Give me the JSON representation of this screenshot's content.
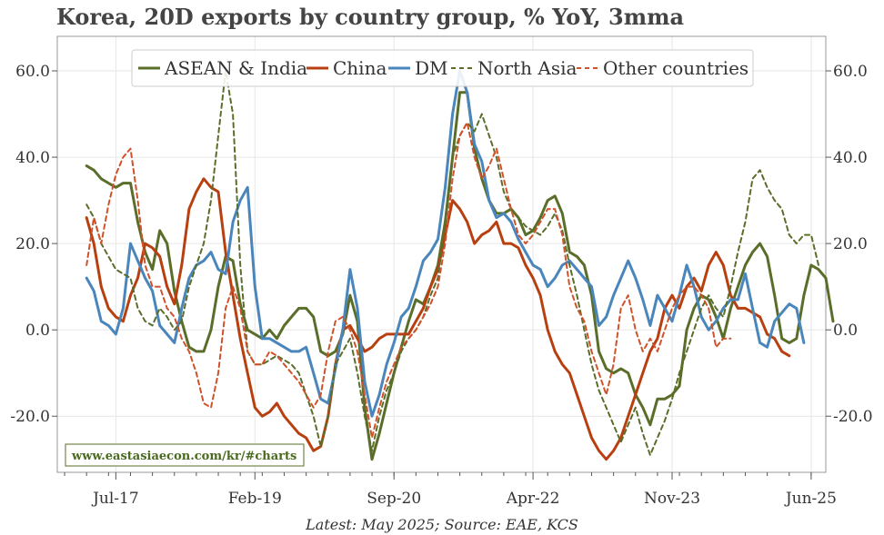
{
  "title": "Korea, 20D exports by country group, % YoY, 3mma",
  "source": "Latest: May 2025; Source: EAE, KCS",
  "watermark": "www.eastasiaecon.com/kr/#charts",
  "chart_data": {
    "type": "line",
    "title": "Korea, 20D exports by country group, % YoY, 3mma",
    "ylim": [
      -33,
      68
    ],
    "y_ticks": [
      60,
      40,
      20,
      0,
      -20
    ],
    "y_tick_labels": [
      "60.0",
      "40.0",
      "20.0",
      "0.0",
      "-20.0"
    ],
    "x_ticks": [
      "Jul-17",
      "Feb-19",
      "Sep-20",
      "Apr-22",
      "Nov-23",
      "Jun-25"
    ],
    "x_range": [
      "2016-11",
      "2025-08"
    ],
    "grid": true,
    "legend_position": "top",
    "start_month": "2017-03",
    "series": [
      {
        "name": "ASEAN & India",
        "color": "#5a6e2a",
        "dash": "solid",
        "values": [
          38,
          37,
          35,
          34,
          33,
          34,
          34,
          25,
          18,
          14,
          23,
          20,
          9,
          2,
          -4,
          -5,
          -5,
          0,
          10,
          17,
          16,
          6,
          0,
          -1,
          -2,
          0,
          -2,
          1,
          3,
          5,
          5,
          3,
          -5,
          -6,
          -5,
          -1,
          8,
          2,
          -18,
          -30,
          -24,
          -17,
          -10,
          -4,
          2,
          7,
          6,
          10,
          15,
          25,
          40,
          55,
          55,
          42,
          35,
          30,
          27,
          27,
          28,
          26,
          22,
          23,
          26,
          30,
          31,
          27,
          18,
          17,
          15,
          8,
          -5,
          -9,
          -10,
          -9,
          -10,
          -15,
          -18,
          -22,
          -16,
          -16,
          -15,
          -13,
          0,
          5,
          8,
          7,
          3,
          -2,
          5,
          10,
          15,
          18,
          20,
          17,
          8,
          -2,
          -3,
          -2,
          8,
          15,
          14,
          12,
          2
        ]
      },
      {
        "name": "China",
        "color": "#b84010",
        "dash": "solid",
        "values": [
          26,
          20,
          10,
          5,
          3,
          2,
          8,
          12,
          20,
          19,
          17,
          10,
          6,
          15,
          28,
          32,
          35,
          33,
          32,
          18,
          8,
          -2,
          -10,
          -18,
          -20,
          -19,
          -17,
          -20,
          -22,
          -24,
          -25,
          -28,
          -27,
          -20,
          -8,
          0,
          1,
          -2,
          -5,
          -4,
          -2,
          -1,
          -1,
          -1,
          -1,
          2,
          5,
          10,
          14,
          22,
          30,
          28,
          25,
          20,
          22,
          23,
          25,
          20,
          20,
          19,
          15,
          12,
          8,
          0,
          -5,
          -8,
          -10,
          -15,
          -20,
          -25,
          -28,
          -30,
          -28,
          -25,
          -20,
          -15,
          -10,
          -5,
          -2,
          5,
          8,
          5,
          10,
          12,
          9,
          15,
          18,
          15,
          8,
          5,
          5,
          4,
          3,
          -1,
          -2,
          -5,
          -6
        ]
      },
      {
        "name": "DM",
        "color": "#4a86bb",
        "dash": "solid",
        "values": [
          12,
          9,
          2,
          1,
          -1,
          5,
          20,
          16,
          12,
          9,
          1,
          -1,
          -3,
          5,
          12,
          15,
          16,
          18,
          14,
          13,
          25,
          30,
          33,
          10,
          -2,
          -2,
          -3,
          -4,
          -5,
          -5,
          -4,
          -10,
          -16,
          -17,
          -9,
          0,
          14,
          5,
          -12,
          -20,
          -15,
          -8,
          -3,
          3,
          5,
          10,
          16,
          18,
          21,
          33,
          50,
          60,
          55,
          43,
          39,
          30,
          26,
          27,
          25,
          21,
          18,
          15,
          14,
          10,
          12,
          15,
          16,
          14,
          12,
          10,
          1,
          3,
          8,
          12,
          16,
          12,
          7,
          1,
          8,
          5,
          2,
          8,
          15,
          10,
          3,
          0,
          2,
          5,
          7,
          7,
          13,
          5,
          -3,
          -4,
          2,
          4,
          6,
          5,
          -3
        ]
      },
      {
        "name": "North Asia",
        "color": "#5a6e2a",
        "dash": "dashed",
        "values": [
          29,
          26,
          20,
          17,
          14,
          13,
          12,
          5,
          2,
          1,
          5,
          3,
          0,
          2,
          10,
          15,
          20,
          30,
          45,
          60,
          50,
          15,
          -5,
          -8,
          -8,
          -7,
          -6,
          -7,
          -8,
          -10,
          -15,
          -20,
          -27,
          -20,
          -8,
          -5,
          -2,
          -10,
          -20,
          -28,
          -20,
          -14,
          -10,
          -5,
          -2,
          0,
          3,
          8,
          12,
          25,
          40,
          45,
          48,
          46,
          50,
          45,
          40,
          32,
          28,
          26,
          24,
          23,
          22,
          24,
          27,
          23,
          15,
          8,
          0,
          -8,
          -14,
          -18,
          -22,
          -26,
          -22,
          -18,
          -24,
          -29,
          -25,
          -21,
          -16,
          -10,
          -5,
          0,
          5,
          8,
          5,
          3,
          10,
          18,
          25,
          35,
          37,
          33,
          30,
          28,
          22,
          20,
          22,
          22,
          15
        ]
      },
      {
        "name": "Other countries",
        "color": "#d0522a",
        "dash": "dashed",
        "values": [
          15,
          26,
          20,
          29,
          36,
          40,
          42,
          30,
          15,
          10,
          10,
          5,
          3,
          -2,
          -5,
          -10,
          -17,
          -18,
          -10,
          5,
          10,
          5,
          -5,
          -8,
          -8,
          -5,
          -6,
          -8,
          -10,
          -12,
          -15,
          -18,
          -15,
          -5,
          2,
          3,
          0,
          -5,
          -15,
          -25,
          -18,
          -12,
          -8,
          -4,
          -2,
          0,
          3,
          6,
          10,
          20,
          35,
          45,
          48,
          40,
          35,
          38,
          42,
          35,
          28,
          22,
          20,
          22,
          25,
          28,
          28,
          22,
          10,
          5,
          2,
          -5,
          -10,
          -15,
          -8,
          5,
          8,
          0,
          -5,
          -2,
          -5,
          0,
          5,
          8,
          10,
          10,
          8,
          5,
          -4,
          -2,
          -2
        ]
      }
    ]
  }
}
